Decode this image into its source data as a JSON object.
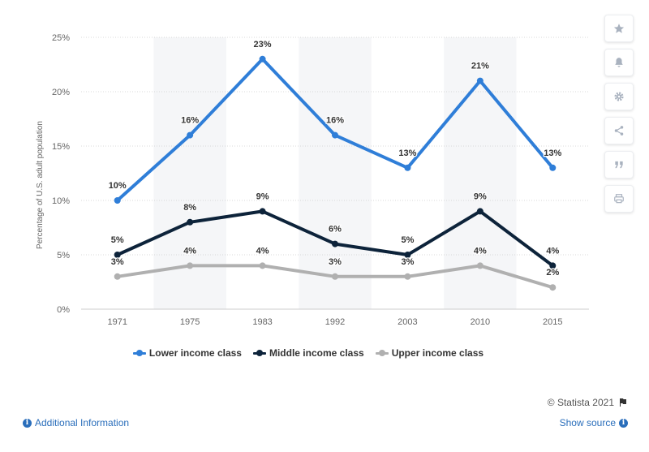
{
  "chart_data": {
    "type": "line",
    "categories": [
      "1971",
      "1975",
      "1983",
      "1992",
      "2003",
      "2010",
      "2015"
    ],
    "series": [
      {
        "name": "Lower income class",
        "color": "#2f7ed8",
        "values": [
          10,
          16,
          23,
          16,
          13,
          21,
          13
        ],
        "labels": [
          "10%",
          "16%",
          "23%",
          "16%",
          "13%",
          "21%",
          "13%"
        ]
      },
      {
        "name": "Middle income class",
        "color": "#0d233a",
        "values": [
          5,
          8,
          9,
          6,
          5,
          9,
          4
        ],
        "labels": [
          "5%",
          "8%",
          "9%",
          "6%",
          "5%",
          "9%",
          "4%"
        ]
      },
      {
        "name": "Upper income class",
        "color": "#b0b0b0",
        "values": [
          3,
          4,
          4,
          3,
          3,
          4,
          2
        ],
        "labels": [
          "3%",
          "4%",
          "4%",
          "3%",
          "3%",
          "4%",
          "2%"
        ]
      }
    ],
    "ylabel": "Percentage of U.S. adult population",
    "yticks": [
      0,
      5,
      10,
      15,
      20,
      25
    ],
    "ytick_labels": [
      "0%",
      "5%",
      "10%",
      "15%",
      "20%",
      "25%"
    ],
    "ylim": [
      0,
      25
    ],
    "grid": true,
    "legend_position": "bottom-center"
  },
  "footer": {
    "copyright": "© Statista 2021",
    "additional_info": "Additional Information",
    "show_source": "Show source"
  },
  "toolbar": {
    "icons": [
      "star-icon",
      "bell-icon",
      "gear-icon",
      "share-icon",
      "quote-icon",
      "print-icon"
    ]
  }
}
